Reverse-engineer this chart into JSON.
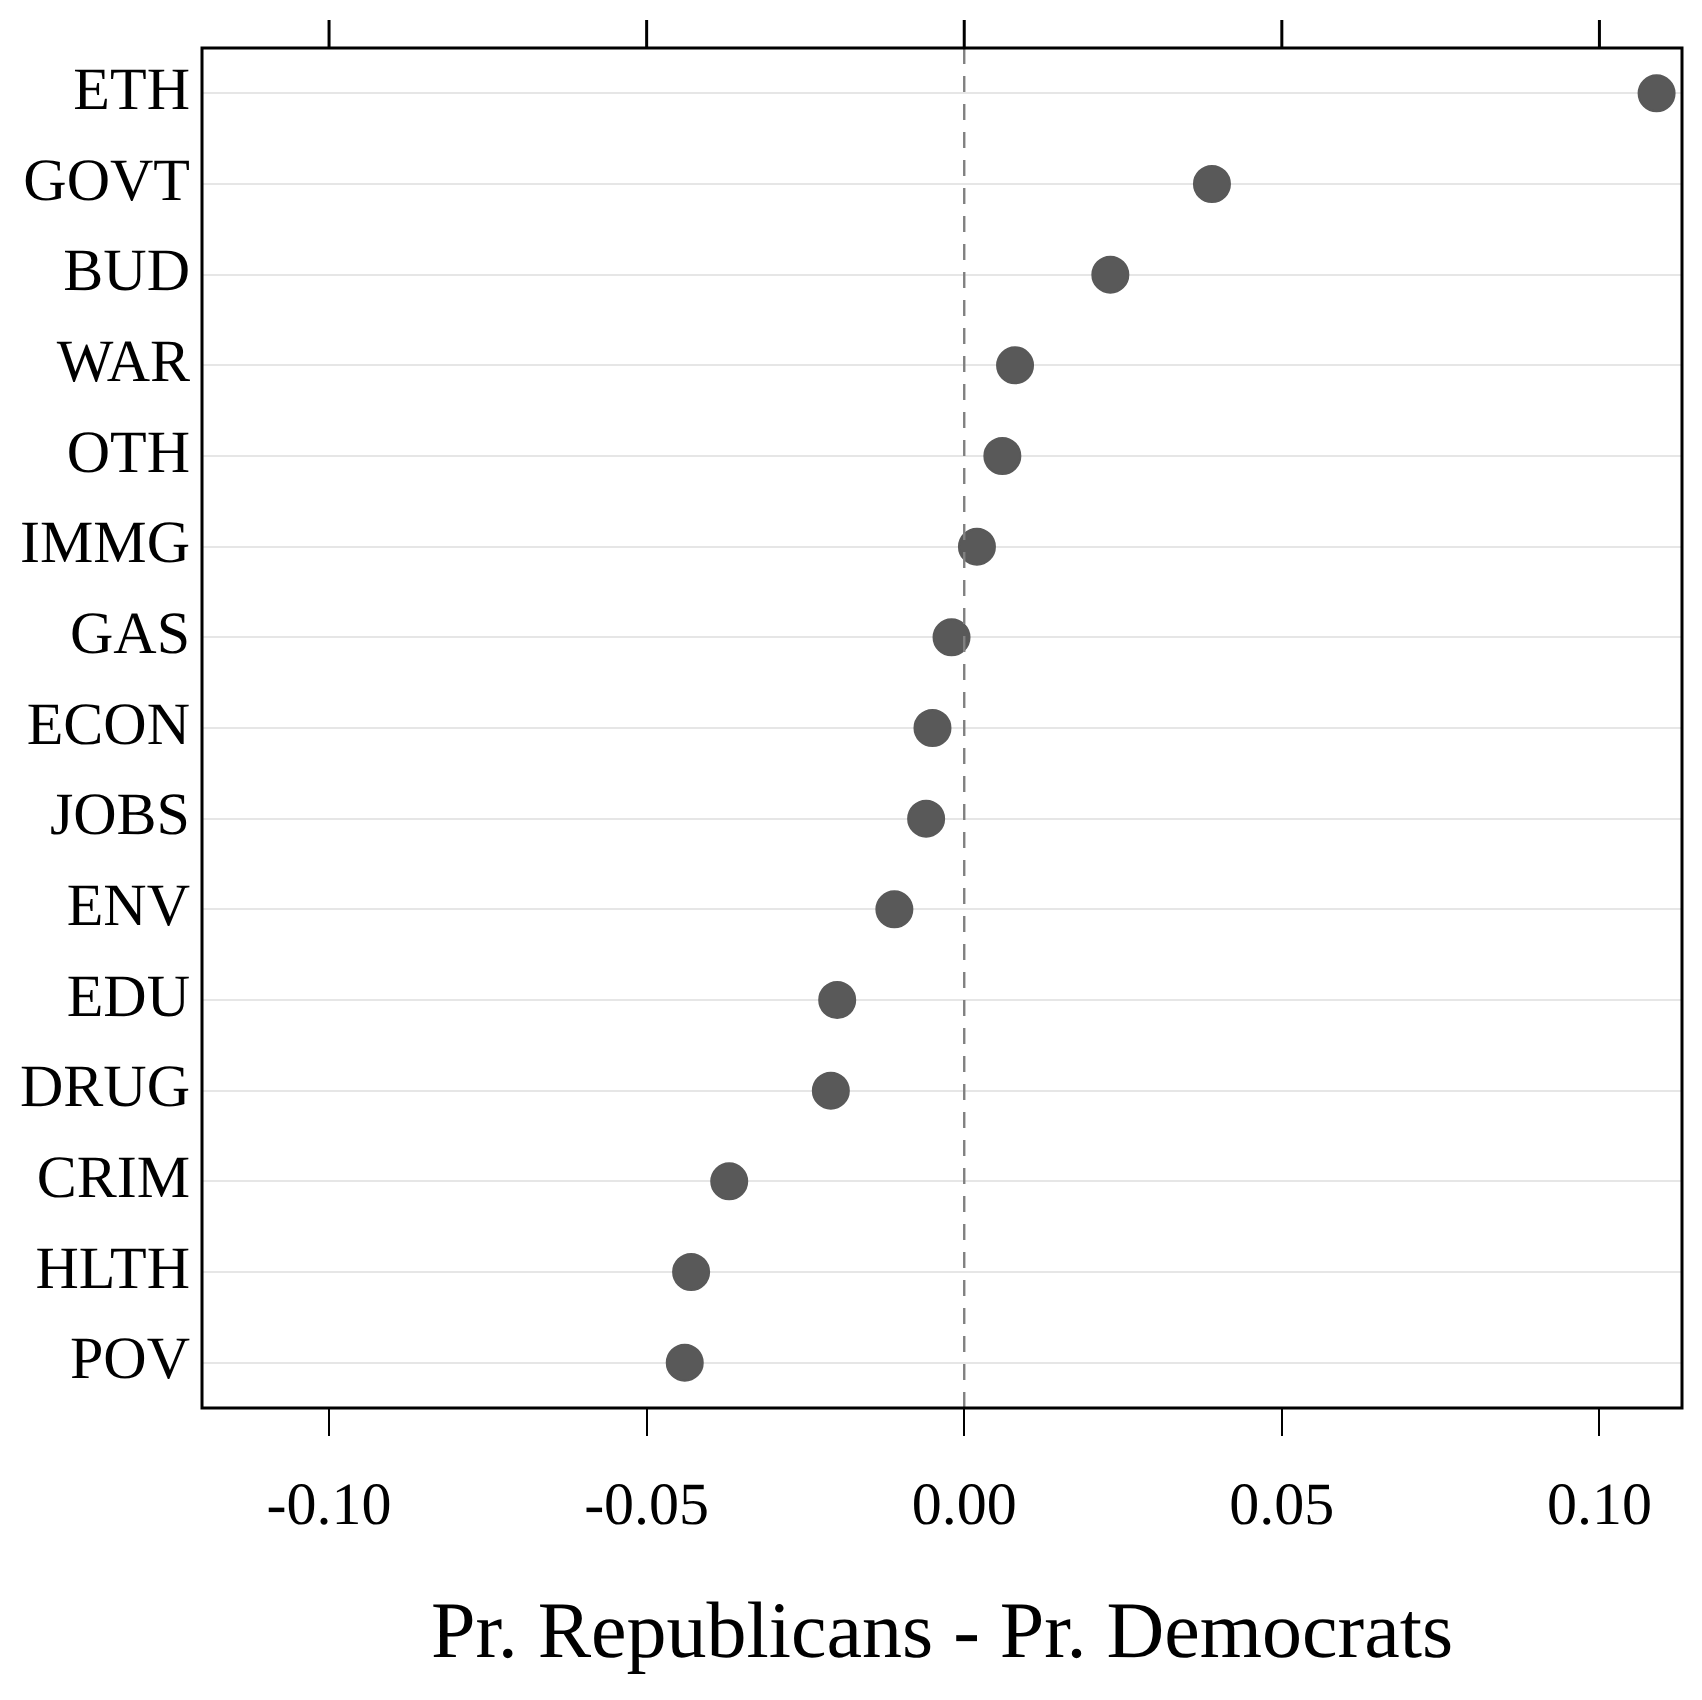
{
  "chart_data": {
    "type": "scatter",
    "xlabel": "Pr. Republicans - Pr. Democrats",
    "categories": [
      "ETH",
      "GOVT",
      "BUD",
      "WAR",
      "OTH",
      "IMMG",
      "GAS",
      "ECON",
      "JOBS",
      "ENV",
      "EDU",
      "DRUG",
      "CRIM",
      "HLTH",
      "POV"
    ],
    "series": [
      {
        "color": "#595959",
        "values": [
          0.109,
          0.039,
          0.023,
          0.008,
          0.006,
          0.002,
          -0.002,
          -0.005,
          -0.006,
          -0.011,
          -0.02,
          -0.021,
          -0.037,
          -0.043,
          -0.044
        ]
      }
    ],
    "orientation": "horizontal",
    "xlim": [
      -0.12,
      0.113
    ],
    "xticks": [
      {
        "value": -0.1,
        "label": "-0.10"
      },
      {
        "value": -0.05,
        "label": "-0.05"
      },
      {
        "value": 0,
        "label": "0.00"
      },
      {
        "value": 0.05,
        "label": "0.05"
      },
      {
        "value": 0.1,
        "label": "0.10"
      }
    ],
    "ref_lines": [
      {
        "axis": "x",
        "value": 0,
        "color": "#808080",
        "line_style": "dashed"
      }
    ],
    "grid": "y",
    "marker": "circle",
    "legend": false
  }
}
